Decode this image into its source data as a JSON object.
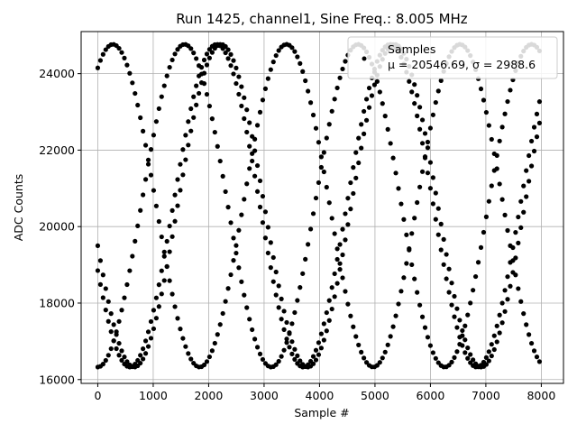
{
  "chart_data": {
    "type": "scatter",
    "title": "Run 1425, channel1, Sine Freq.: 8.005 MHz",
    "xlabel": "Sample #",
    "ylabel": "ADC Counts",
    "xlim": [
      -300,
      8400
    ],
    "ylim": [
      15900,
      25100
    ],
    "xticks": [
      0,
      1000,
      2000,
      3000,
      4000,
      5000,
      6000,
      7000,
      8000
    ],
    "yticks": [
      16000,
      18000,
      20000,
      22000,
      24000
    ],
    "grid": true,
    "legend_position": "top-right",
    "legend_title": "Samples",
    "legend_stats": "μ = 20546.69, σ = 2988.6",
    "series": [
      {
        "name": "Samples",
        "marker_color": "#000000",
        "model": "sine",
        "mean": 20546.69,
        "amplitude": 4220,
        "clip_min": 16270,
        "clip_max": 24790,
        "period_samples": 3130,
        "n_traces": 4,
        "x_start": 0,
        "x_end": 8000,
        "x_step": 48,
        "trace_initial_values": [
          24150,
          19500,
          16270,
          18850
        ]
      }
    ]
  },
  "colors": {
    "marker": "#000000",
    "grid": "#b0b0b0",
    "axes": "#000000",
    "background": "#ffffff"
  }
}
